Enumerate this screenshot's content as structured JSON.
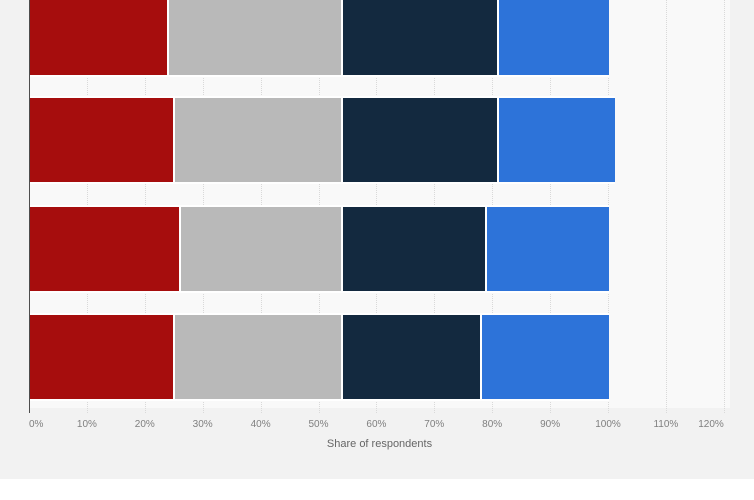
{
  "page": {
    "background_color": "#f2f2f2",
    "plot_background_color": "#f9f9f9",
    "footer_strip_color": "#ffffff"
  },
  "chart_data": {
    "type": "bar",
    "orientation": "horizontal",
    "stacked": true,
    "title": "",
    "xlabel": "Share of respondents",
    "ylabel": "",
    "x_ticks": [
      "0%",
      "10%",
      "20%",
      "30%",
      "40%",
      "50%",
      "60%",
      "70%",
      "80%",
      "90%",
      "100%",
      "110%",
      "120%"
    ],
    "x_range_percent": [
      0,
      120
    ],
    "grid": true,
    "legend": false,
    "categories": [
      "row-1",
      "row-2",
      "row-3",
      "row-4"
    ],
    "series": [
      {
        "name": "segment-1-dark-red",
        "color": "#a60d0d",
        "values": [
          24,
          25,
          26,
          25
        ]
      },
      {
        "name": "segment-2-gray",
        "color": "#b9b9b9",
        "values": [
          30,
          29,
          28,
          29
        ]
      },
      {
        "name": "segment-3-dark-navy",
        "color": "#13293f",
        "values": [
          27,
          27,
          25,
          24
        ]
      },
      {
        "name": "segment-4-blue",
        "color": "#2d73d9",
        "values": [
          19,
          20,
          21,
          22
        ]
      }
    ],
    "row_totals_percent": [
      100,
      101,
      100,
      100
    ]
  }
}
